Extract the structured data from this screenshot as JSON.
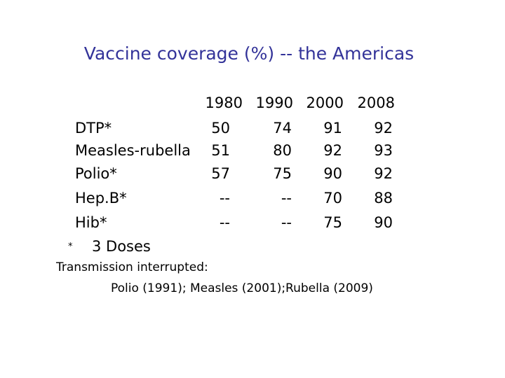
{
  "title": "Vaccine coverage (%) -- the Americas",
  "table": {
    "header": [
      "1980",
      "1990",
      "2000",
      "2008"
    ],
    "rows": [
      [
        "DTP*",
        "50",
        "74",
        "91",
        "92"
      ],
      [
        "Measles-rubella",
        "51",
        "80",
        "92",
        "93"
      ],
      [
        "Polio*",
        "57",
        "75",
        "90",
        "92"
      ],
      [
        "Hep.B*",
        "--",
        "--",
        "70",
        "88"
      ],
      [
        "Hib*",
        "--",
        "--",
        "75",
        "90"
      ]
    ],
    "footnote": {
      "marker": "*",
      "text": "3 Doses"
    }
  },
  "note": {
    "heading": "Transmission interrupted:",
    "text": "Polio (1991); Measles (2001);Rubella (2009)"
  }
}
